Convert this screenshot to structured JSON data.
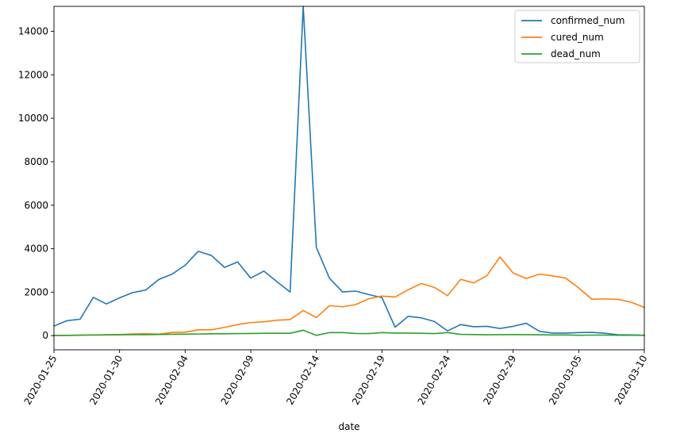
{
  "chart_data": {
    "type": "line",
    "title": "",
    "xlabel": "date",
    "ylabel": "",
    "ylim": [
      -650,
      15150
    ],
    "yticks": [
      0,
      2000,
      4000,
      6000,
      8000,
      10000,
      12000,
      14000
    ],
    "xtick_labels": [
      "2020-01-25",
      "2020-01-30",
      "2020-02-04",
      "2020-02-09",
      "2020-02-14",
      "2020-02-19",
      "2020-02-24",
      "2020-02-29",
      "2020-03-05",
      "2020-03-10"
    ],
    "grid": false,
    "legend_position": "top-right",
    "x": [
      "2020-01-25",
      "2020-01-26",
      "2020-01-27",
      "2020-01-28",
      "2020-01-29",
      "2020-01-30",
      "2020-01-31",
      "2020-02-01",
      "2020-02-02",
      "2020-02-03",
      "2020-02-04",
      "2020-02-05",
      "2020-02-06",
      "2020-02-07",
      "2020-02-08",
      "2020-02-09",
      "2020-02-10",
      "2020-02-11",
      "2020-02-12",
      "2020-02-13",
      "2020-02-14",
      "2020-02-15",
      "2020-02-16",
      "2020-02-17",
      "2020-02-18",
      "2020-02-19",
      "2020-02-20",
      "2020-02-21",
      "2020-02-22",
      "2020-02-23",
      "2020-02-24",
      "2020-02-25",
      "2020-02-26",
      "2020-02-27",
      "2020-02-28",
      "2020-02-29",
      "2020-03-01",
      "2020-03-02",
      "2020-03-03",
      "2020-03-04",
      "2020-03-05",
      "2020-03-06",
      "2020-03-07",
      "2020-03-08",
      "2020-03-09",
      "2020-03-10"
    ],
    "series": [
      {
        "name": "confirmed_num",
        "color": "#1f77b4",
        "values": [
          440,
          690,
          760,
          1760,
          1460,
          1740,
          1980,
          2100,
          2590,
          2830,
          3240,
          3880,
          3690,
          3140,
          3390,
          2650,
          2970,
          2480,
          2010,
          15150,
          4060,
          2640,
          2010,
          2050,
          1890,
          1750,
          390,
          890,
          820,
          650,
          220,
          510,
          410,
          430,
          330,
          430,
          570,
          200,
          120,
          120,
          140,
          150,
          110,
          40,
          30,
          20
        ]
      },
      {
        "name": "cured_num",
        "color": "#ff7f0e",
        "values": [
          10,
          10,
          20,
          30,
          40,
          50,
          80,
          90,
          70,
          150,
          160,
          270,
          270,
          380,
          510,
          600,
          640,
          710,
          740,
          1160,
          830,
          1380,
          1330,
          1430,
          1700,
          1820,
          1780,
          2110,
          2400,
          2220,
          1840,
          2590,
          2430,
          2760,
          3620,
          2880,
          2630,
          2830,
          2750,
          2650,
          2190,
          1680,
          1690,
          1670,
          1540,
          1300
        ]
      },
      {
        "name": "dead_num",
        "color": "#2ca02c",
        "values": [
          15,
          15,
          25,
          30,
          35,
          40,
          45,
          45,
          55,
          65,
          70,
          75,
          85,
          85,
          95,
          100,
          110,
          110,
          110,
          250,
          15,
          140,
          140,
          100,
          95,
          140,
          120,
          120,
          110,
          95,
          140,
          60,
          50,
          40,
          45,
          50,
          45,
          40,
          30,
          30,
          20,
          25,
          25,
          20,
          20,
          15
        ]
      }
    ]
  }
}
